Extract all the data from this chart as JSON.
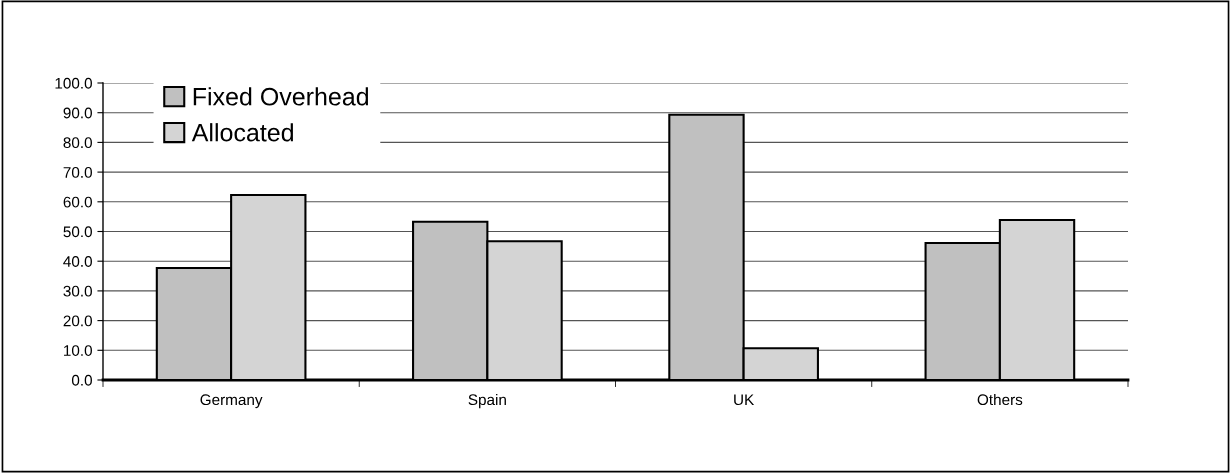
{
  "chart_data": {
    "type": "bar",
    "categories": [
      "Germany",
      "Spain",
      "UK",
      "Others"
    ],
    "series": [
      {
        "name": "Fixed Overhead",
        "color": "#c0c0c0",
        "values": [
          37.7,
          53.3,
          89.3,
          46.1
        ]
      },
      {
        "name": "Allocated",
        "color": "#d4d4d4",
        "values": [
          62.3,
          46.7,
          10.7,
          53.9
        ]
      }
    ],
    "ylim": [
      0,
      100
    ],
    "yticks": [
      {
        "value": 0,
        "label": "0.0"
      },
      {
        "value": 10,
        "label": "10.0"
      },
      {
        "value": 20,
        "label": "20.0"
      },
      {
        "value": 30,
        "label": "30.0"
      },
      {
        "value": 40,
        "label": "40.0"
      },
      {
        "value": 50,
        "label": "50.0"
      },
      {
        "value": 60,
        "label": "60.0"
      },
      {
        "value": 70,
        "label": "70.0"
      },
      {
        "value": 80,
        "label": "80.0"
      },
      {
        "value": 90,
        "label": "90.0"
      },
      {
        "value": 100,
        "label": "100.0"
      }
    ],
    "grid": "y",
    "legend": "top left"
  }
}
